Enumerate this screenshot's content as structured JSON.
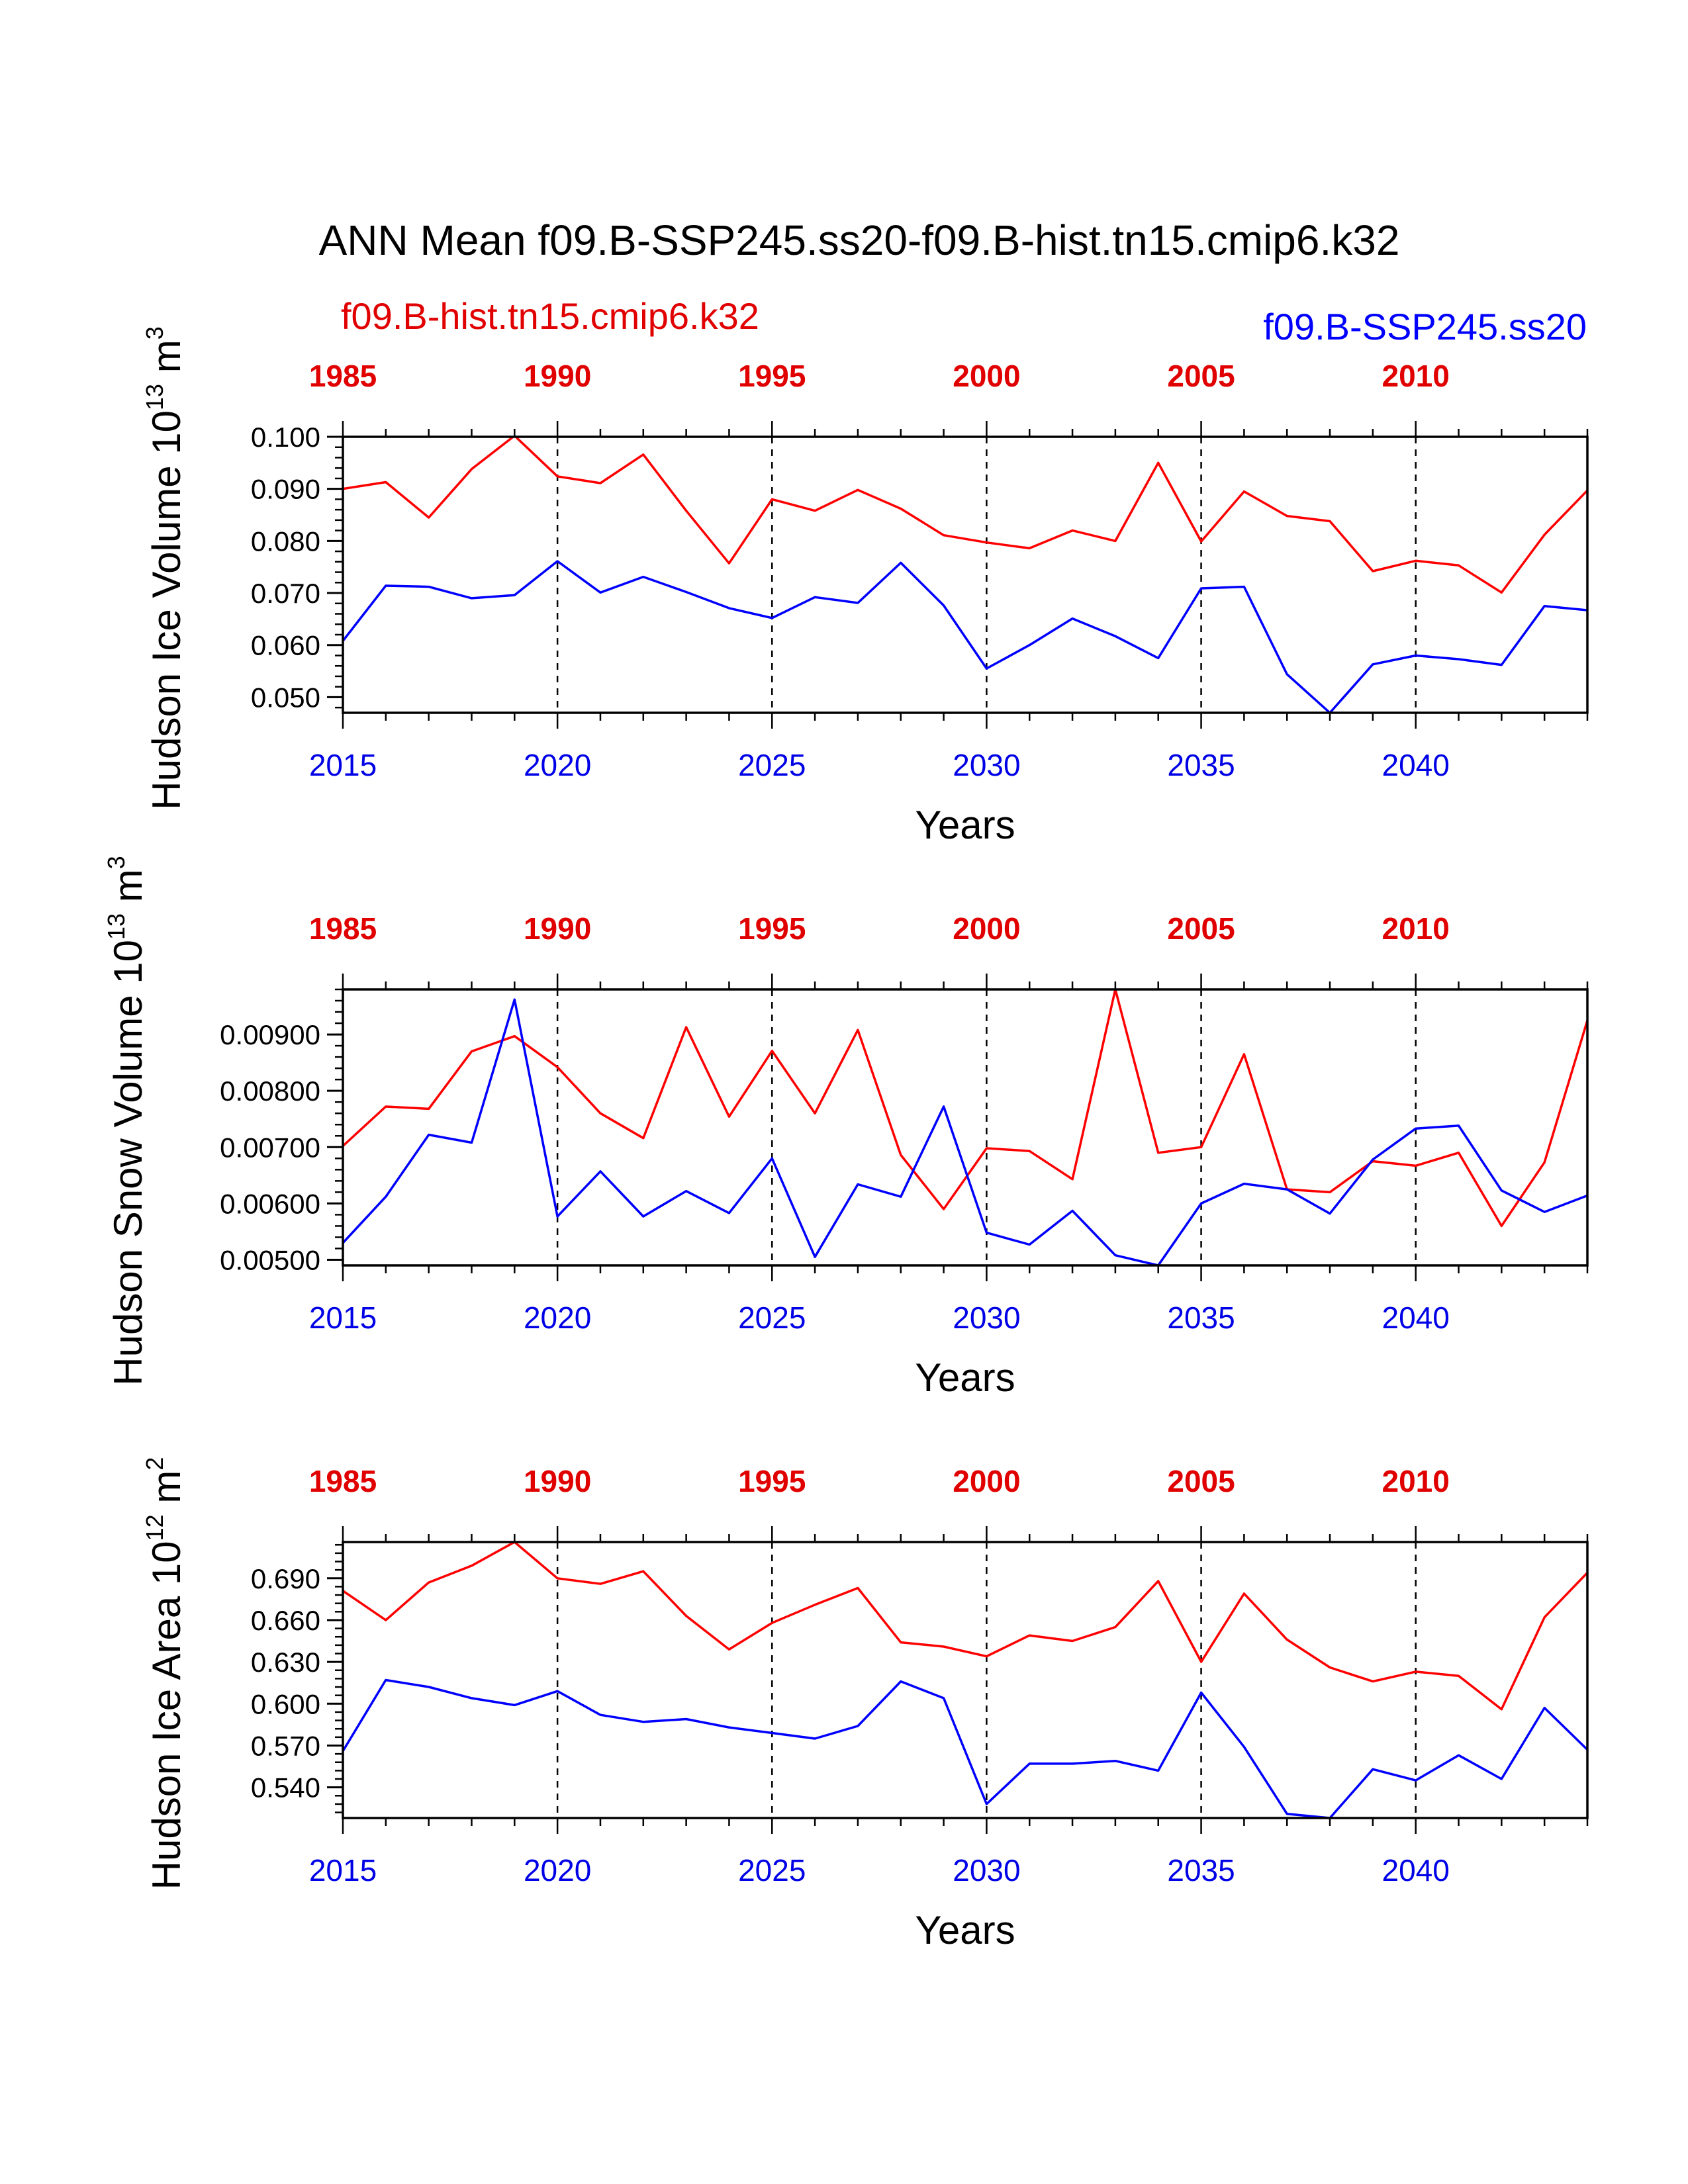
{
  "title": "ANN Mean f09.B-SSP245.ss20-f09.B-hist.tn15.cmip6.k32",
  "legend": {
    "hist_label": "f09.B-hist.tn15.cmip6.k32",
    "ssp_label": "f09.B-SSP245.ss20"
  },
  "colors": {
    "hist": "#ff0000",
    "ssp": "#0000ff"
  },
  "chart_data": [
    {
      "type": "line",
      "ylabel": "Hudson Ice Volume 10",
      "ylabel_exp": "13",
      "ylabel_unit": " m",
      "ylabel_unit_exp": "3",
      "xlabel": "Years",
      "ylim": [
        0.047,
        0.1
      ],
      "xlim": [
        2015,
        2044
      ],
      "top_xlim": [
        1985,
        2014
      ],
      "yticks": [
        "0.050",
        "0.060",
        "0.070",
        "0.080",
        "0.090",
        "0.100"
      ],
      "xticks": [
        "2015",
        "2020",
        "2025",
        "2030",
        "2035",
        "2040"
      ],
      "top_xticks": [
        "1985",
        "1990",
        "1995",
        "2000",
        "2005",
        "2010"
      ],
      "series": [
        {
          "name": "f09.B-hist.tn15.cmip6.k32",
          "x_axis": "top",
          "x": [
            1985,
            1986,
            1987,
            1988,
            1989,
            1990,
            1991,
            1992,
            1993,
            1994,
            1995,
            1996,
            1997,
            1998,
            1999,
            2000,
            2001,
            2002,
            2003,
            2004,
            2005,
            2006,
            2007,
            2008,
            2009,
            2010,
            2011,
            2012,
            2013,
            2014
          ],
          "values": [
            0.09,
            0.0913,
            0.0845,
            0.0938,
            0.1002,
            0.0924,
            0.0911,
            0.0966,
            0.0858,
            0.0757,
            0.088,
            0.0858,
            0.0898,
            0.0862,
            0.0811,
            0.0797,
            0.0786,
            0.082,
            0.08,
            0.095,
            0.0799,
            0.0895,
            0.0848,
            0.0838,
            0.0742,
            0.0762,
            0.0753,
            0.0701,
            0.0812,
            0.0897
          ]
        },
        {
          "name": "f09.B-SSP245.ss20",
          "x_axis": "bottom",
          "x": [
            2015,
            2016,
            2017,
            2018,
            2019,
            2020,
            2021,
            2022,
            2023,
            2024,
            2025,
            2026,
            2027,
            2028,
            2029,
            2030,
            2031,
            2032,
            2033,
            2034,
            2035,
            2036,
            2037,
            2038,
            2039,
            2040,
            2041,
            2042,
            2043,
            2044
          ],
          "values": [
            0.0608,
            0.0714,
            0.0712,
            0.069,
            0.0696,
            0.0761,
            0.0701,
            0.0731,
            0.0702,
            0.0671,
            0.0652,
            0.0692,
            0.0681,
            0.0758,
            0.0676,
            0.0555,
            0.06,
            0.0651,
            0.0617,
            0.0575,
            0.0709,
            0.0712,
            0.0544,
            0.047,
            0.0563,
            0.058,
            0.0573,
            0.0562,
            0.0675,
            0.0667
          ]
        }
      ]
    },
    {
      "type": "line",
      "ylabel": "Hudson Snow Volume 10",
      "ylabel_exp": "13",
      "ylabel_unit": " m",
      "ylabel_unit_exp": "3",
      "xlabel": "Years",
      "ylim": [
        0.0049,
        0.0098
      ],
      "xlim": [
        2015,
        2044
      ],
      "top_xlim": [
        1985,
        2014
      ],
      "yticks": [
        "0.00500",
        "0.00600",
        "0.00700",
        "0.00800",
        "0.00900"
      ],
      "xticks": [
        "2015",
        "2020",
        "2025",
        "2030",
        "2035",
        "2040"
      ],
      "top_xticks": [
        "1985",
        "1990",
        "1995",
        "2000",
        "2005",
        "2010"
      ],
      "series": [
        {
          "name": "f09.B-hist.tn15.cmip6.k32",
          "x_axis": "top",
          "x": [
            1985,
            1986,
            1987,
            1988,
            1989,
            1990,
            1991,
            1992,
            1993,
            1994,
            1995,
            1996,
            1997,
            1998,
            1999,
            2000,
            2001,
            2002,
            2003,
            2004,
            2005,
            2006,
            2007,
            2008,
            2009,
            2010,
            2011,
            2012,
            2013,
            2014
          ],
          "values": [
            0.00702,
            0.00772,
            0.00768,
            0.0087,
            0.00897,
            0.00842,
            0.0076,
            0.00716,
            0.00913,
            0.00754,
            0.00871,
            0.0076,
            0.00908,
            0.00686,
            0.0059,
            0.00698,
            0.00693,
            0.00643,
            0.0098,
            0.0069,
            0.007,
            0.00865,
            0.00625,
            0.0062,
            0.00675,
            0.00667,
            0.0069,
            0.0056,
            0.00673,
            0.00925
          ]
        },
        {
          "name": "f09.B-SSP245.ss20",
          "x_axis": "bottom",
          "x": [
            2015,
            2016,
            2017,
            2018,
            2019,
            2020,
            2021,
            2022,
            2023,
            2024,
            2025,
            2026,
            2027,
            2028,
            2029,
            2030,
            2031,
            2032,
            2033,
            2034,
            2035,
            2036,
            2037,
            2038,
            2039,
            2040,
            2041,
            2042,
            2043,
            2044
          ],
          "values": [
            0.0053,
            0.00612,
            0.00722,
            0.00708,
            0.00962,
            0.00577,
            0.00657,
            0.00577,
            0.00622,
            0.00583,
            0.0068,
            0.00505,
            0.00634,
            0.00612,
            0.00772,
            0.00548,
            0.00527,
            0.00587,
            0.00508,
            0.0049,
            0.006,
            0.00635,
            0.00625,
            0.00582,
            0.00678,
            0.00733,
            0.00738,
            0.00623,
            0.00585,
            0.00614
          ]
        }
      ]
    },
    {
      "type": "line",
      "ylabel": "Hudson Ice Area 10",
      "ylabel_exp": "12",
      "ylabel_unit": " m",
      "ylabel_unit_exp": "2",
      "xlabel": "Years",
      "ylim": [
        0.518,
        0.716
      ],
      "xlim": [
        2015,
        2044
      ],
      "top_xlim": [
        1985,
        2014
      ],
      "yticks": [
        "0.540",
        "0.570",
        "0.600",
        "0.630",
        "0.660",
        "0.690"
      ],
      "xticks": [
        "2015",
        "2020",
        "2025",
        "2030",
        "2035",
        "2040"
      ],
      "top_xticks": [
        "1985",
        "1990",
        "1995",
        "2000",
        "2005",
        "2010"
      ],
      "series": [
        {
          "name": "f09.B-hist.tn15.cmip6.k32",
          "x_axis": "top",
          "x": [
            1985,
            1986,
            1987,
            1988,
            1989,
            1990,
            1991,
            1992,
            1993,
            1994,
            1995,
            1996,
            1997,
            1998,
            1999,
            2000,
            2001,
            2002,
            2003,
            2004,
            2005,
            2006,
            2007,
            2008,
            2009,
            2010,
            2011,
            2012,
            2013,
            2014
          ],
          "values": [
            0.681,
            0.66,
            0.687,
            0.699,
            0.716,
            0.69,
            0.686,
            0.695,
            0.663,
            0.639,
            0.658,
            0.671,
            0.683,
            0.644,
            0.641,
            0.634,
            0.649,
            0.645,
            0.655,
            0.688,
            0.63,
            0.679,
            0.646,
            0.626,
            0.616,
            0.623,
            0.62,
            0.596,
            0.662,
            0.694
          ]
        },
        {
          "name": "f09.B-SSP245.ss20",
          "x_axis": "bottom",
          "x": [
            2015,
            2016,
            2017,
            2018,
            2019,
            2020,
            2021,
            2022,
            2023,
            2024,
            2025,
            2026,
            2027,
            2028,
            2029,
            2030,
            2031,
            2032,
            2033,
            2034,
            2035,
            2036,
            2037,
            2038,
            2039,
            2040,
            2041,
            2042,
            2043,
            2044
          ],
          "values": [
            0.566,
            0.617,
            0.612,
            0.604,
            0.599,
            0.609,
            0.592,
            0.587,
            0.589,
            0.583,
            0.579,
            0.575,
            0.584,
            0.616,
            0.604,
            0.528,
            0.557,
            0.557,
            0.559,
            0.552,
            0.608,
            0.569,
            0.521,
            0.518,
            0.553,
            0.545,
            0.563,
            0.546,
            0.597,
            0.567
          ]
        }
      ]
    }
  ]
}
